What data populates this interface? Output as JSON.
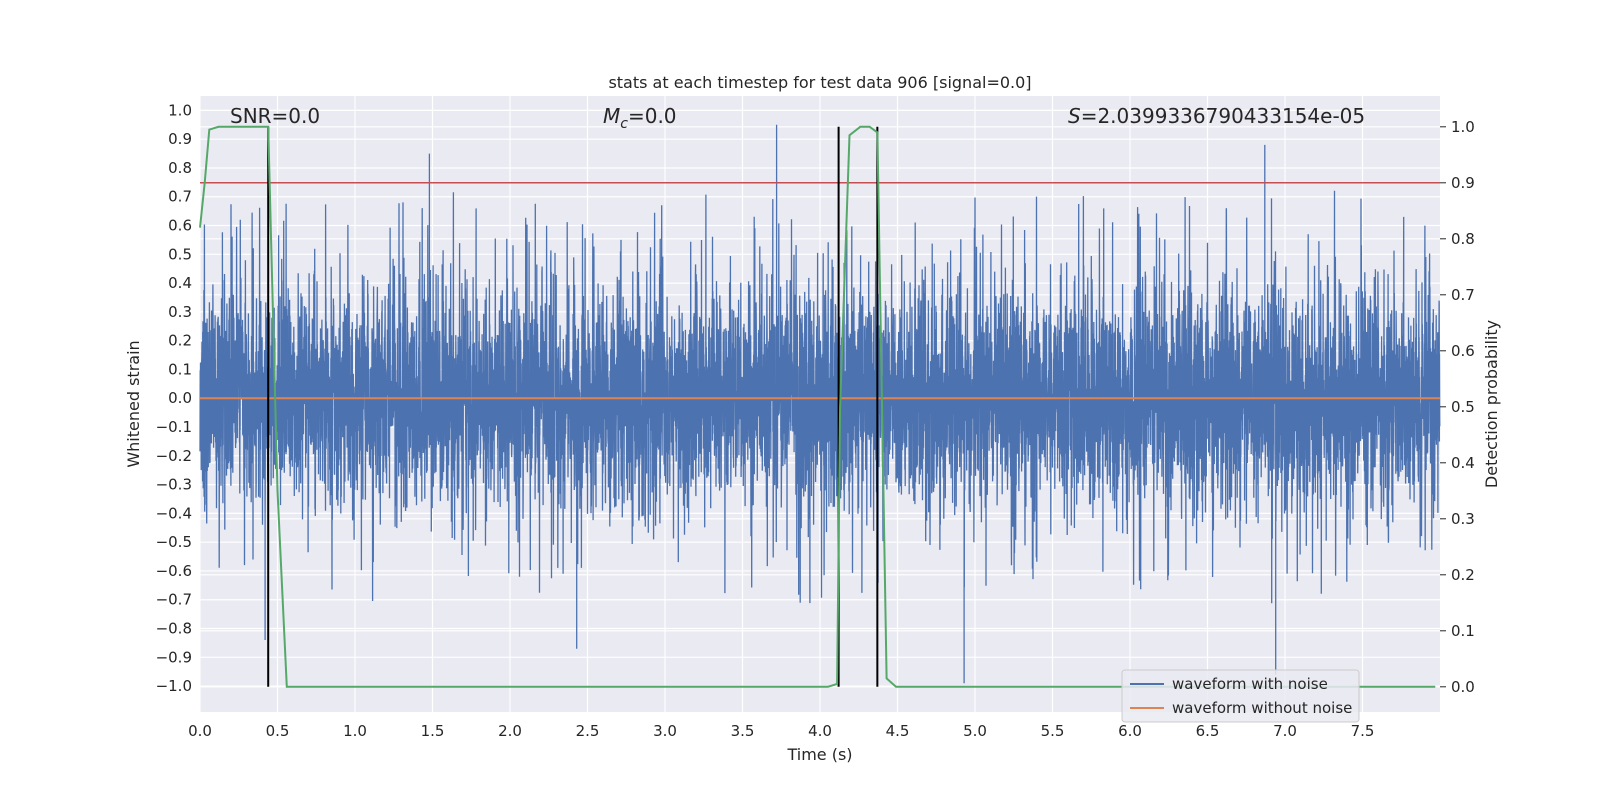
{
  "chart_data": {
    "type": "line",
    "title": "stats at each timestep for test data 906 [signal=0.0]",
    "xlabel": "Time (s)",
    "ylabel_left": "Whitened strain",
    "ylabel_right": "Detection probability",
    "xlim": [
      0.0,
      8.0
    ],
    "ylim_left": [
      -1.09,
      1.05
    ],
    "ylim_right": [
      -0.045,
      1.055
    ],
    "grid": true,
    "x_ticks": [
      0.0,
      0.5,
      1.0,
      1.5,
      2.0,
      2.5,
      3.0,
      3.5,
      4.0,
      4.5,
      5.0,
      5.5,
      6.0,
      6.5,
      7.0,
      7.5
    ],
    "x_tick_labels": [
      "0.0",
      "0.5",
      "1.0",
      "1.5",
      "2.0",
      "2.5",
      "3.0",
      "3.5",
      "4.0",
      "4.5",
      "5.0",
      "5.5",
      "6.0",
      "6.5",
      "7.0",
      "7.5"
    ],
    "y_left_ticks": [
      1.0,
      0.9,
      0.8,
      0.7,
      0.6,
      0.5,
      0.4,
      0.3,
      0.2,
      0.1,
      0.0,
      -0.1,
      -0.2,
      -0.3,
      -0.4,
      -0.5,
      -0.6,
      -0.7,
      -0.8,
      -0.9,
      -1.0
    ],
    "y_left_tick_labels": [
      "1.0",
      "0.9",
      "0.8",
      "0.7",
      "0.6",
      "0.5",
      "0.4",
      "0.3",
      "0.2",
      "0.1",
      "0.0",
      "−0.1",
      "−0.2",
      "−0.3",
      "−0.4",
      "−0.5",
      "−0.6",
      "−0.7",
      "−0.8",
      "−0.9",
      "−1.0"
    ],
    "y_right_ticks": [
      1.0,
      0.9,
      0.8,
      0.7,
      0.6,
      0.5,
      0.4,
      0.3,
      0.2,
      0.1,
      0.0
    ],
    "y_right_tick_labels": [
      "1.0",
      "0.9",
      "0.8",
      "0.7",
      "0.6",
      "0.5",
      "0.4",
      "0.3",
      "0.2",
      "0.1",
      "0.0"
    ],
    "annotations": {
      "snr": "SNR=0.0",
      "mc_symbol": "M",
      "mc_sub": "c",
      "mc_value": "=0.0",
      "s_symbol": "S",
      "s_value": "=2.0399336790433154e-05"
    },
    "legend": {
      "position": "lower-right",
      "entries": [
        "waveform with noise",
        "waveform without noise"
      ]
    },
    "colors": {
      "noise": "#4c72b0",
      "clean": "#dd8452",
      "probability": "#55a868",
      "threshold": "#c44e52",
      "markers": "#000000",
      "plot_bg": "#eaeaf2",
      "grid": "#ffffff"
    },
    "series": [
      {
        "name": "waveform with noise",
        "axis": "left",
        "style": "dense-noise",
        "core_band": [
          -0.3,
          0.3
        ],
        "typical_peak": 0.6,
        "sampling_hz": 2048,
        "notable_spikes": [
          [
            3.72,
            0.95
          ],
          [
            4.93,
            -0.99
          ],
          [
            6.94,
            -0.96
          ],
          [
            6.87,
            0.88
          ],
          [
            2.43,
            -0.87
          ],
          [
            0.42,
            -0.84
          ],
          [
            1.48,
            0.85
          ]
        ]
      },
      {
        "name": "waveform without noise",
        "axis": "left",
        "x": [
          0.0,
          8.0
        ],
        "y": [
          0.0,
          0.0
        ]
      },
      {
        "name": "detection probability",
        "axis": "right",
        "x": [
          0.0,
          0.03,
          0.06,
          0.12,
          0.2,
          0.3,
          0.44,
          0.5,
          0.56,
          1.0,
          2.0,
          3.0,
          4.0,
          4.05,
          4.11,
          4.13,
          4.19,
          4.26,
          4.32,
          4.37,
          4.43,
          4.49,
          5.0,
          6.0,
          7.0,
          7.97
        ],
        "y": [
          0.82,
          0.9,
          0.995,
          1.0,
          1.0,
          1.0,
          1.0,
          0.35,
          0.0,
          0.0,
          0.0,
          0.0,
          0.0,
          0.0,
          0.005,
          0.5,
          0.985,
          1.0,
          1.0,
          0.99,
          0.015,
          0.0,
          0.0,
          0.0,
          0.0,
          0.0
        ]
      },
      {
        "name": "threshold",
        "axis": "right",
        "x": [
          0.0,
          8.0
        ],
        "y": [
          0.9,
          0.9
        ]
      }
    ],
    "vertical_markers_x": [
      0.44,
      4.12,
      4.37
    ]
  }
}
